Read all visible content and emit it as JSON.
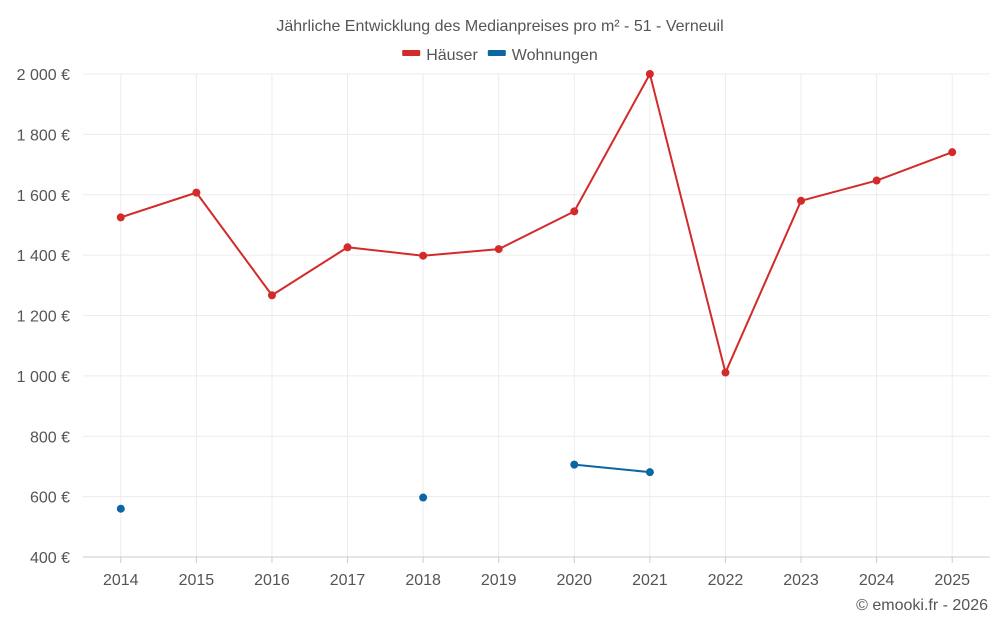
{
  "chart_data": {
    "type": "line",
    "title": "Jährliche Entwicklung des Medianpreises pro m² - 51 - Verneuil",
    "categories": [
      "2014",
      "2015",
      "2016",
      "2017",
      "2018",
      "2019",
      "2020",
      "2021",
      "2022",
      "2023",
      "2024",
      "2025"
    ],
    "series": [
      {
        "name": "Häuser",
        "color": "#d32a2a",
        "values": [
          1525,
          1607,
          1267,
          1426,
          1398,
          1420,
          1545,
          2000,
          1011,
          1580,
          1647,
          1741
        ]
      },
      {
        "name": "Wohnungen",
        "color": "#0b67a3",
        "values": [
          560,
          null,
          null,
          null,
          597,
          null,
          706,
          681,
          null,
          null,
          null,
          null
        ]
      }
    ],
    "ylim": [
      400,
      2000
    ],
    "yticks": [
      400,
      600,
      800,
      1000,
      1200,
      1400,
      1600,
      1800,
      2000
    ],
    "ytick_labels": [
      "400 €",
      "600 €",
      "800 €",
      "1 000 €",
      "1 200 €",
      "1 400 €",
      "1 600 €",
      "1 800 €",
      "2 000 €"
    ],
    "grid": true,
    "legend_position": "top-center",
    "xlabel": "",
    "ylabel": ""
  },
  "credit": "© emooki.fr - 2026"
}
